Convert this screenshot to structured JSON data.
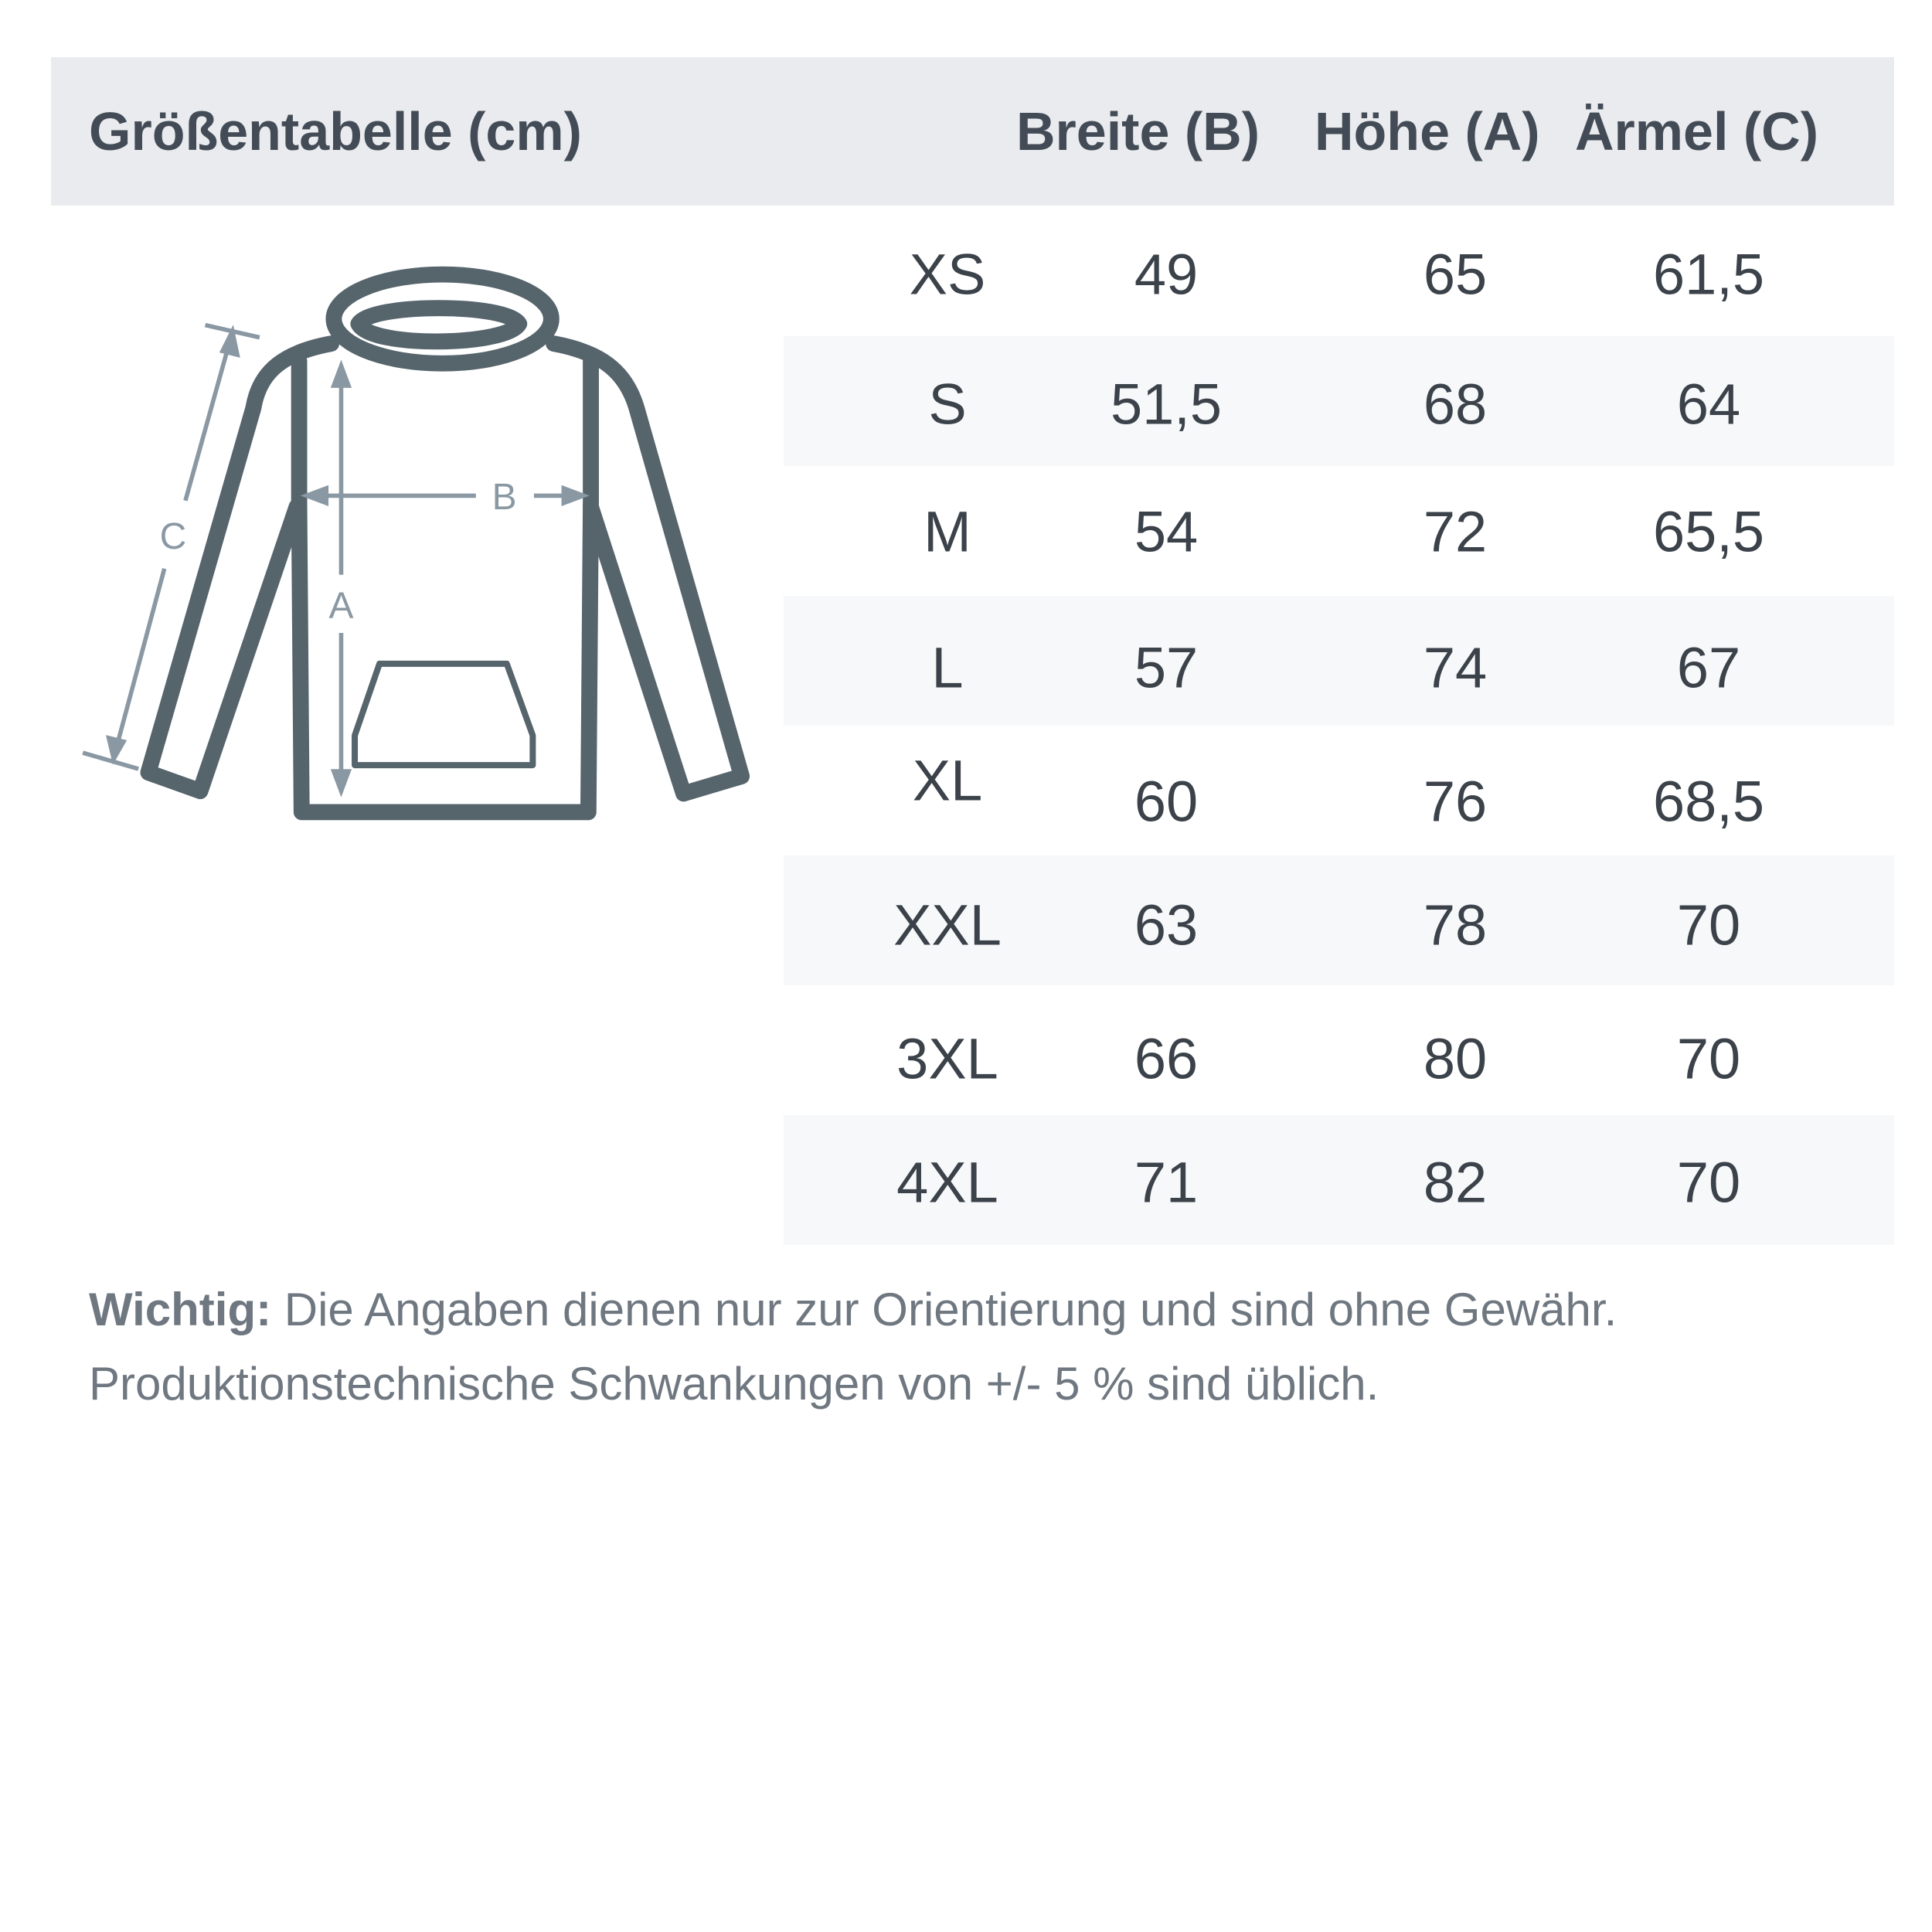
{
  "header": {
    "title": "Größentabelle (cm)",
    "columns": [
      "Breite (B)",
      "Höhe (A)",
      "Ärmel (C)"
    ]
  },
  "diagram": {
    "labels": {
      "a": "A",
      "b": "B",
      "c": "C"
    },
    "colors": {
      "outline": "#56646c",
      "arrows": "#8a98a3"
    }
  },
  "rows": [
    {
      "size": "XS",
      "breite": "49",
      "hoehe": "65",
      "aermel": "61,5"
    },
    {
      "size": "S",
      "breite": "51,5",
      "hoehe": "68",
      "aermel": "64"
    },
    {
      "size": "M",
      "breite": "54",
      "hoehe": "72",
      "aermel": "65,5"
    },
    {
      "size": "L",
      "breite": "57",
      "hoehe": "74",
      "aermel": "67"
    },
    {
      "size": "XL",
      "breite": "60",
      "hoehe": "76",
      "aermel": "68,5"
    },
    {
      "size": "XXL",
      "breite": "63",
      "hoehe": "78",
      "aermel": "70"
    },
    {
      "size": "3XL",
      "breite": "66",
      "hoehe": "80",
      "aermel": "70"
    },
    {
      "size": "4XL",
      "breite": "71",
      "hoehe": "82",
      "aermel": "70"
    }
  ],
  "note": {
    "label": "Wichtig:",
    "line1": " Die Angaben dienen nur zur Orientierung und sind ohne Gewähr.",
    "line2": "Produktionstechnische Schwankungen von +/- 5 % sind üblich."
  }
}
